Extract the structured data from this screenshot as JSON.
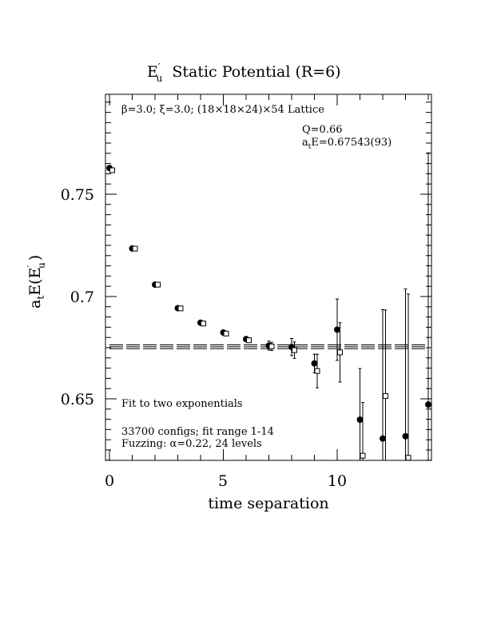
{
  "chart_data": {
    "type": "scatter",
    "title": "E′u  Static Potential (R=6)",
    "title_main": "E",
    "title_prime": "′",
    "title_sub": "u",
    "title_rest": "Static Potential (R=6)",
    "xlabel": "time separation",
    "ylabel": "aₜE(E′u)",
    "ylabel_a": "a",
    "ylabel_t": "t",
    "ylabel_E": "E(E",
    "ylabel_prime": "′",
    "ylabel_u": "u",
    "ylabel_close": ")",
    "xlim": [
      0,
      14
    ],
    "ylim": [
      0.62,
      0.799
    ],
    "x_ticks": [
      0,
      5,
      10
    ],
    "x_tick_labels": [
      "0",
      "5",
      "10"
    ],
    "y_ticks": [
      0.65,
      0.7,
      0.75
    ],
    "y_tick_labels": [
      "0.65",
      "0.7",
      "0.75"
    ],
    "grid": false,
    "annotations": {
      "lattice": "β=3.0; ξ=3.0; (18×18×24)×54 Lattice",
      "q": "Q=0.66",
      "energy": "aₜE=0.67543(93)",
      "energy_a": "a",
      "energy_t": "t",
      "energy_rest": "E=0.67543(93)",
      "fit_note": "Fit to two exponentials",
      "configs": "33700 configs; fit range 1-14",
      "fuzzing": "Fuzzing: α=0.22, 24 levels"
    },
    "fit_line": {
      "value": 0.67543,
      "error": 0.00093,
      "x_range": [
        0,
        14
      ]
    },
    "series": [
      {
        "marker": "filled-circle",
        "x": [
          0,
          1,
          2,
          3,
          4,
          5,
          6,
          7,
          8,
          9,
          10,
          11,
          12,
          13,
          14
        ],
        "y": [
          0.7628,
          0.7235,
          0.7058,
          0.6943,
          0.6872,
          0.6824,
          0.6792,
          0.676,
          0.6753,
          0.6673,
          0.6838,
          0.6398,
          0.6306,
          0.6317,
          0.6472
        ],
        "err": [
          0.0005,
          0.0005,
          0.0006,
          0.0006,
          0.0007,
          0.0008,
          0.001,
          0.0022,
          0.0042,
          0.0045,
          0.015,
          0.025,
          0.063,
          0.072,
          0.123
        ]
      },
      {
        "marker": "open-square",
        "x": [
          0,
          1,
          2,
          3,
          4,
          5,
          6,
          7,
          8,
          9,
          10,
          11,
          12,
          13
        ],
        "y": [
          0.7617,
          0.7234,
          0.7058,
          0.6942,
          0.6868,
          0.6819,
          0.6786,
          0.6756,
          0.6738,
          0.6636,
          0.6727,
          0.6222,
          0.6514,
          0.6212
        ],
        "err": [
          0.0004,
          0.0004,
          0.0005,
          0.0005,
          0.0006,
          0.0008,
          0.001,
          0.002,
          0.004,
          0.0082,
          0.0145,
          0.026,
          0.042,
          0.08
        ]
      }
    ]
  }
}
